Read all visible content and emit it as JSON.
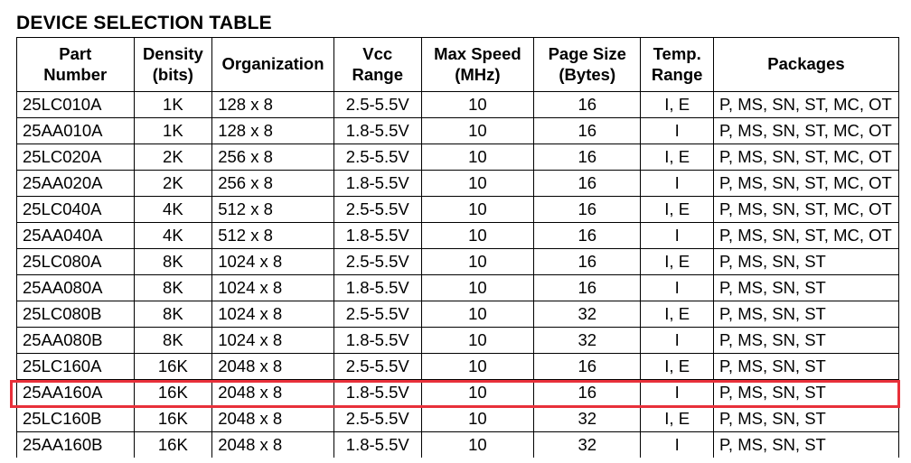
{
  "title": "DEVICE SELECTION TABLE",
  "columns": [
    {
      "key": "part",
      "line1": "Part",
      "line2": "Number"
    },
    {
      "key": "density",
      "line1": "Density",
      "line2": "(bits)"
    },
    {
      "key": "org",
      "line1": "Organization",
      "line2": ""
    },
    {
      "key": "vcc",
      "line1": "Vcc",
      "line2": "Range"
    },
    {
      "key": "speed",
      "line1": "Max Speed",
      "line2": "(MHz)"
    },
    {
      "key": "page",
      "line1": "Page Size",
      "line2": "(Bytes)"
    },
    {
      "key": "temp",
      "line1": "Temp.",
      "line2": "Range"
    },
    {
      "key": "pkg",
      "line1": "Packages",
      "line2": ""
    }
  ],
  "rows": [
    [
      "25LC010A",
      "1K",
      "128 x 8",
      "2.5-5.5V",
      "10",
      "16",
      "I, E",
      "P, MS, SN, ST, MC, OT"
    ],
    [
      "25AA010A",
      "1K",
      "128 x 8",
      "1.8-5.5V",
      "10",
      "16",
      "I",
      "P, MS, SN, ST, MC, OT"
    ],
    [
      "25LC020A",
      "2K",
      "256 x 8",
      "2.5-5.5V",
      "10",
      "16",
      "I, E",
      "P, MS, SN, ST, MC, OT"
    ],
    [
      "25AA020A",
      "2K",
      "256 x 8",
      "1.8-5.5V",
      "10",
      "16",
      "I",
      "P, MS, SN, ST, MC, OT"
    ],
    [
      "25LC040A",
      "4K",
      "512 x 8",
      "2.5-5.5V",
      "10",
      "16",
      "I, E",
      "P, MS, SN, ST, MC, OT"
    ],
    [
      "25AA040A",
      "4K",
      "512 x 8",
      "1.8-5.5V",
      "10",
      "16",
      "I",
      "P, MS, SN, ST, MC, OT"
    ],
    [
      "25LC080A",
      "8K",
      "1024 x 8",
      "2.5-5.5V",
      "10",
      "16",
      "I, E",
      "P, MS, SN, ST"
    ],
    [
      "25AA080A",
      "8K",
      "1024 x 8",
      "1.8-5.5V",
      "10",
      "16",
      "I",
      "P, MS, SN, ST"
    ],
    [
      "25LC080B",
      "8K",
      "1024 x 8",
      "2.5-5.5V",
      "10",
      "32",
      "I, E",
      "P, MS, SN, ST"
    ],
    [
      "25AA080B",
      "8K",
      "1024 x 8",
      "1.8-5.5V",
      "10",
      "32",
      "I",
      "P, MS, SN, ST"
    ],
    [
      "25LC160A",
      "16K",
      "2048 x 8",
      "2.5-5.5V",
      "10",
      "16",
      "I, E",
      "P, MS, SN, ST"
    ],
    [
      "25AA160A",
      "16K",
      "2048 x 8",
      "1.8-5.5V",
      "10",
      "16",
      "I",
      "P, MS, SN, ST"
    ],
    [
      "25LC160B",
      "16K",
      "2048 x 8",
      "2.5-5.5V",
      "10",
      "32",
      "I, E",
      "P, MS, SN, ST"
    ],
    [
      "25AA160B",
      "16K",
      "2048 x 8",
      "1.8-5.5V",
      "10",
      "32",
      "I",
      "P, MS, SN, ST"
    ]
  ],
  "highlight": {
    "row_index": 11,
    "color": "#e8303a"
  }
}
